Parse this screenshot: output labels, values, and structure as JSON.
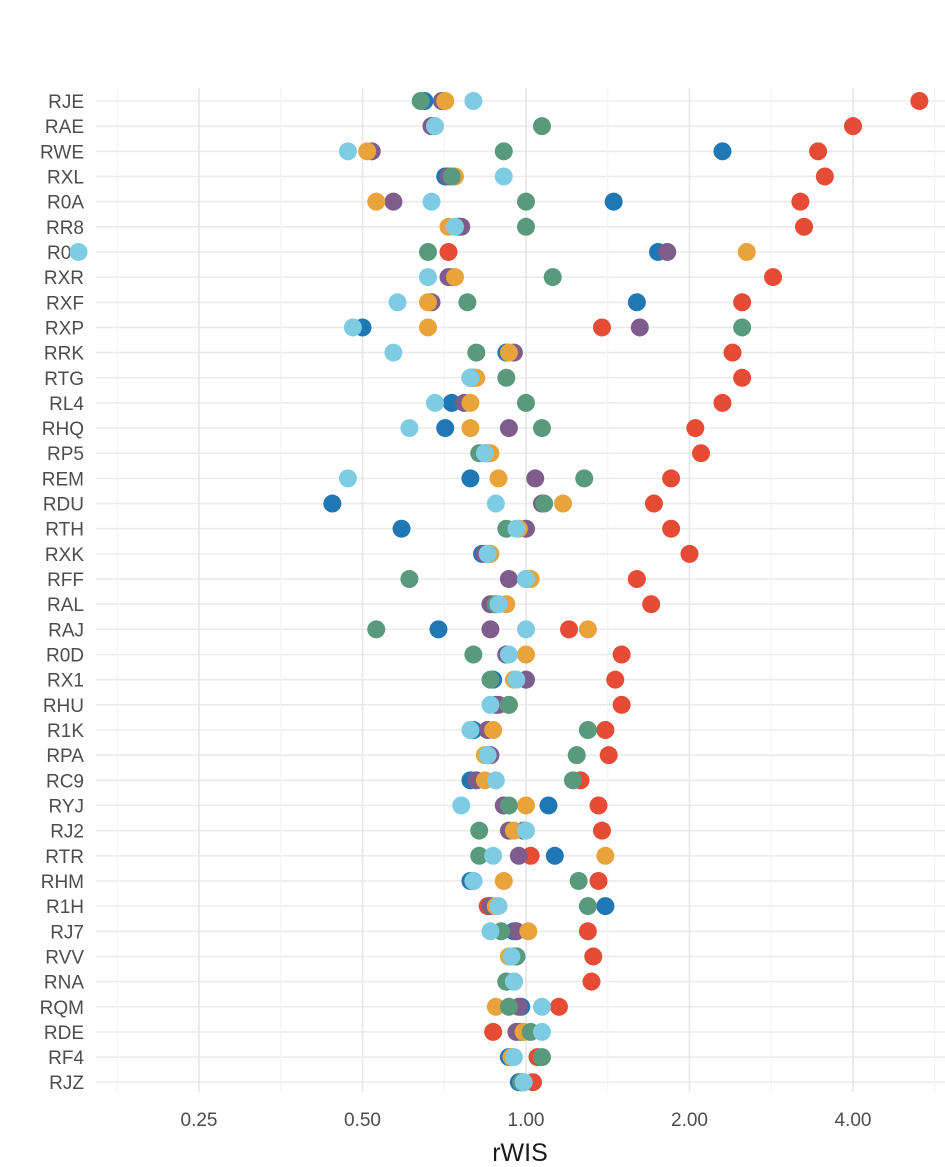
{
  "chart_data": {
    "type": "scatter",
    "xlabel": "rWIS",
    "x_scale": "log2",
    "xlim": [
      0.14,
      6.0
    ],
    "xticks": [
      0.25,
      0.5,
      1.0,
      2.0,
      4.0
    ],
    "xtick_labels": [
      "0.25",
      "0.50",
      "1.00",
      "2.00",
      "4.00"
    ],
    "grid": true,
    "legend": "none",
    "categories": [
      "RJE",
      "RAE",
      "RWE",
      "RXL",
      "R0A",
      "RR8",
      "R0B",
      "RXR",
      "RXF",
      "RXP",
      "RRK",
      "RTG",
      "RL4",
      "RHQ",
      "RP5",
      "REM",
      "RDU",
      "RTH",
      "RXK",
      "RFF",
      "RAL",
      "RAJ",
      "R0D",
      "RX1",
      "RHU",
      "R1K",
      "RPA",
      "RC9",
      "RYJ",
      "RJ2",
      "RTR",
      "RHM",
      "R1H",
      "RJ7",
      "RVV",
      "RNA",
      "RQM",
      "RDE",
      "RF4",
      "RJZ"
    ],
    "series": [
      {
        "color": "#E64B35",
        "values": [
          5.3,
          4.0,
          3.45,
          3.55,
          3.2,
          3.25,
          0.72,
          2.85,
          2.5,
          1.38,
          2.4,
          2.5,
          2.3,
          2.05,
          2.1,
          1.85,
          1.72,
          1.85,
          2.0,
          1.6,
          1.7,
          1.2,
          1.5,
          1.46,
          1.5,
          1.4,
          1.42,
          1.26,
          1.36,
          1.38,
          1.02,
          1.36,
          0.85,
          1.3,
          1.33,
          1.32,
          1.15,
          0.87,
          1.05,
          1.03
        ]
      },
      {
        "color": "#1F77B4",
        "values": [
          0.65,
          0.67,
          2.3,
          0.71,
          1.45,
          0.75,
          1.75,
          0.73,
          1.6,
          0.5,
          0.92,
          0.79,
          0.73,
          0.71,
          0.84,
          0.79,
          0.44,
          0.59,
          0.83,
          1.0,
          0.88,
          0.69,
          0.92,
          0.87,
          0.88,
          0.8,
          0.85,
          0.79,
          1.1,
          0.99,
          1.13,
          0.79,
          1.4,
          0.95,
          0.96,
          0.92,
          0.98,
          0.98,
          0.93,
          0.97
        ]
      },
      {
        "color": "#7E5C8C",
        "values": [
          0.7,
          0.67,
          0.52,
          0.72,
          0.57,
          0.76,
          1.82,
          0.72,
          0.67,
          1.62,
          0.95,
          0.8,
          0.77,
          0.93,
          0.85,
          1.04,
          1.07,
          1.0,
          0.84,
          0.93,
          0.86,
          0.86,
          0.92,
          1.0,
          0.89,
          0.85,
          0.86,
          0.81,
          0.91,
          0.93,
          0.97,
          0.8,
          0.86,
          0.96,
          0.94,
          0.95,
          0.97,
          0.96,
          0.94,
          0.98
        ]
      },
      {
        "color": "#E8A33A",
        "values": [
          0.71,
          0.68,
          0.51,
          0.74,
          0.53,
          0.72,
          2.55,
          0.74,
          0.66,
          0.66,
          0.93,
          0.81,
          0.79,
          0.79,
          0.86,
          0.89,
          1.17,
          0.97,
          0.86,
          1.02,
          0.92,
          1.3,
          1.0,
          0.95,
          0.93,
          0.87,
          0.84,
          0.84,
          1.0,
          0.95,
          1.4,
          0.91,
          0.88,
          1.01,
          0.93,
          0.95,
          0.88,
          0.99,
          0.94,
          0.99
        ]
      },
      {
        "color": "#5A9A7C",
        "values": [
          0.64,
          1.07,
          0.91,
          0.73,
          1.0,
          1.0,
          0.66,
          1.12,
          0.78,
          2.5,
          0.81,
          0.92,
          1.0,
          1.07,
          0.82,
          1.28,
          1.08,
          0.92,
          0.85,
          0.61,
          0.88,
          0.53,
          0.8,
          0.86,
          0.93,
          1.3,
          1.24,
          1.22,
          0.93,
          0.82,
          0.82,
          1.25,
          1.3,
          0.9,
          0.96,
          0.92,
          0.93,
          1.02,
          1.07,
          0.98
        ]
      },
      {
        "color": "#7ECCE3",
        "values": [
          0.8,
          0.68,
          0.47,
          0.91,
          0.67,
          0.74,
          0.15,
          0.66,
          0.58,
          0.48,
          0.57,
          0.79,
          0.68,
          0.61,
          0.84,
          0.47,
          0.88,
          0.96,
          0.85,
          1.0,
          0.89,
          1.0,
          0.93,
          0.96,
          0.86,
          0.79,
          0.85,
          0.88,
          0.76,
          1.0,
          0.87,
          0.8,
          0.89,
          0.86,
          0.94,
          0.95,
          1.07,
          1.07,
          0.95,
          0.99
        ]
      }
    ]
  }
}
